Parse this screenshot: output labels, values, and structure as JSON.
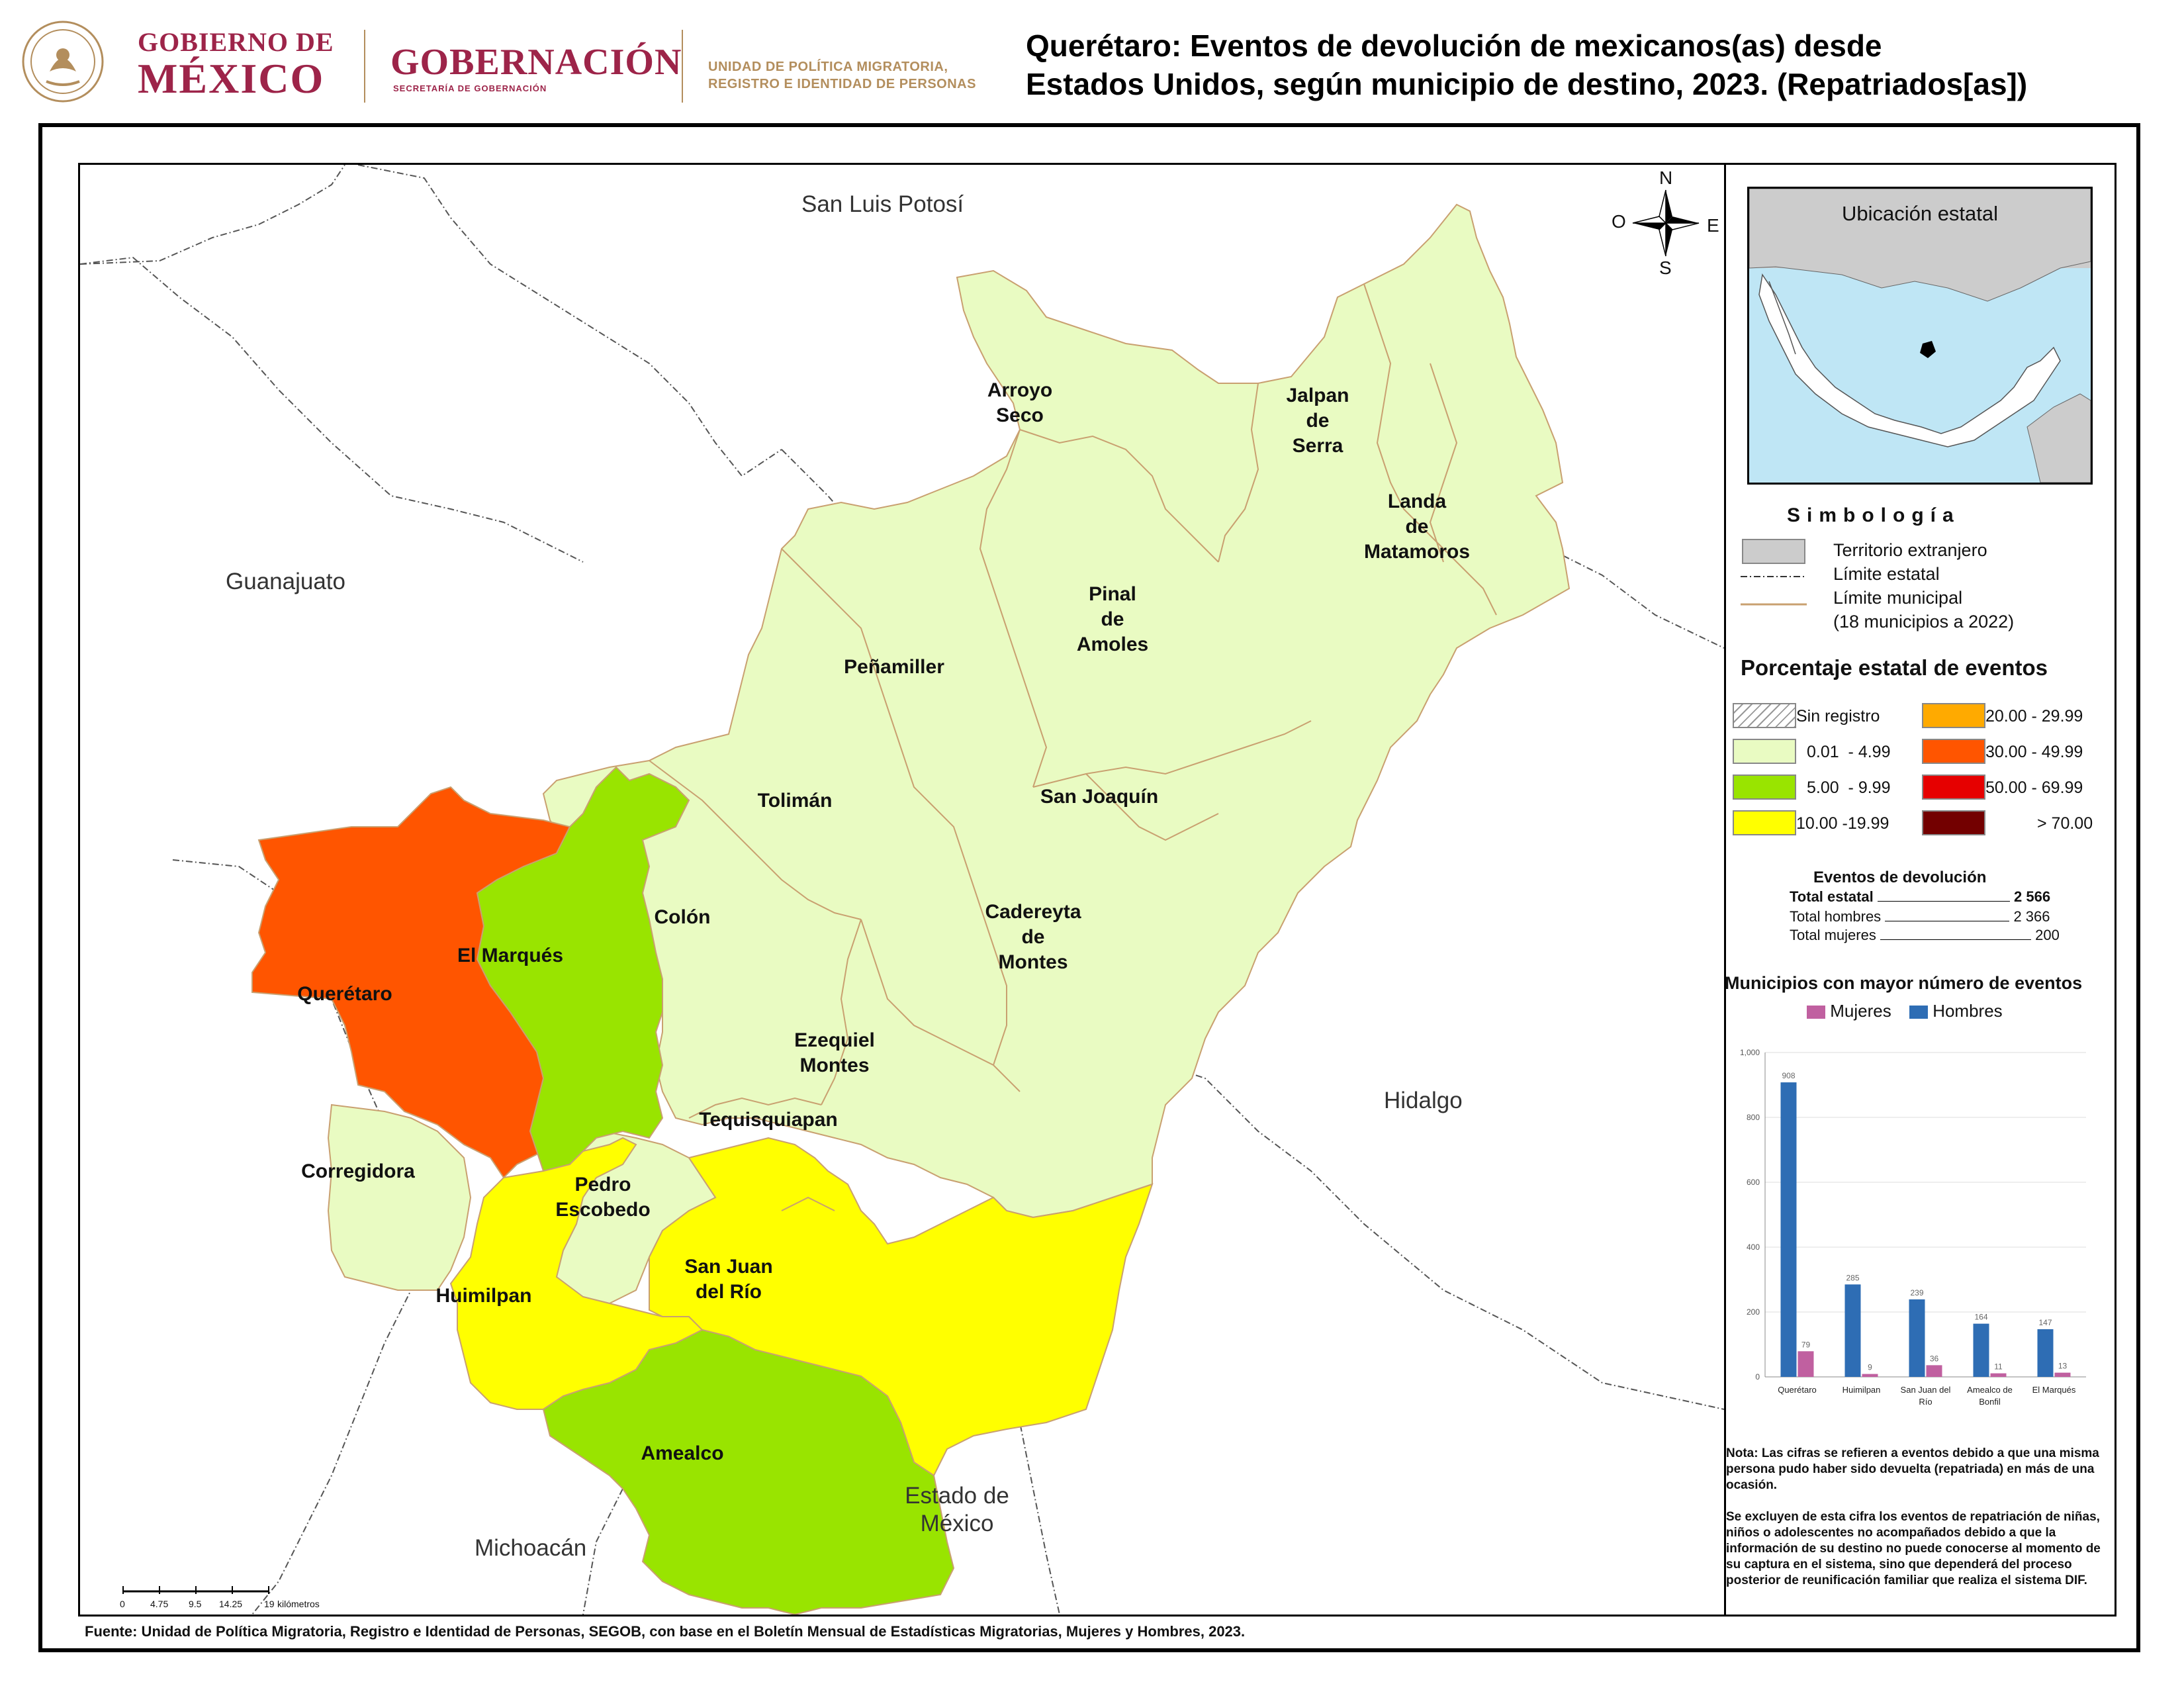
{
  "header": {
    "gob_line1": "GOBIERNO DE",
    "gob_line2": "MÉXICO",
    "gobernacion": "GOBERNACIÓN",
    "gobernacion_sub": "SECRETARÍA DE GOBERNACIÓN",
    "upm_line1": "UNIDAD DE POLÍTICA MIGRATORIA,",
    "upm_line2": "REGISTRO E IDENTIDAD DE PERSONAS",
    "title_line1": "Querétaro: Eventos de devolución de mexicanos(as) desde",
    "title_line2": "Estados Unidos, según municipio de destino, 2023. (Repatriados[as])"
  },
  "map": {
    "neighbors": {
      "north": "San Luis Potosí",
      "west": "Guanajuato",
      "east": "Hidalgo",
      "southwest": "Michoacán",
      "south": "Estado de México"
    },
    "compass": {
      "n": "N",
      "s": "S",
      "e": "E",
      "o": "O"
    },
    "scale": {
      "ticks": [
        "0",
        "4.75",
        "9.5",
        "14.25",
        "19"
      ],
      "unit": "kilómetros"
    },
    "municipios": [
      {
        "name_lines": [
          "Arroyo",
          "Seco"
        ],
        "class": "0.01 - 4.99"
      },
      {
        "name_lines": [
          "Jalpan",
          "de",
          "Serra"
        ],
        "class": "0.01 - 4.99"
      },
      {
        "name_lines": [
          "Landa",
          "de",
          "Matamoros"
        ],
        "class": "0.01 - 4.99"
      },
      {
        "name_lines": [
          "Pinal",
          "de",
          "Amoles"
        ],
        "class": "0.01 - 4.99"
      },
      {
        "name_lines": [
          "Peñamiller"
        ],
        "class": "0.01 - 4.99"
      },
      {
        "name_lines": [
          "Tolimán"
        ],
        "class": "0.01 - 4.99"
      },
      {
        "name_lines": [
          "San Joaquín"
        ],
        "class": "0.01 - 4.99"
      },
      {
        "name_lines": [
          "Colón"
        ],
        "class": "0.01 - 4.99"
      },
      {
        "name_lines": [
          "Cadereyta",
          "de",
          "Montes"
        ],
        "class": "0.01 - 4.99"
      },
      {
        "name_lines": [
          "El Marqués"
        ],
        "class": "5.00 - 9.99"
      },
      {
        "name_lines": [
          "Querétaro"
        ],
        "class": "30.00 - 49.99"
      },
      {
        "name_lines": [
          "Ezequiel",
          "Montes"
        ],
        "class": "0.01 - 4.99"
      },
      {
        "name_lines": [
          "Tequisquiapan"
        ],
        "class": "0.01 - 4.99"
      },
      {
        "name_lines": [
          "Corregidora"
        ],
        "class": "0.01 - 4.99"
      },
      {
        "name_lines": [
          "Pedro",
          "Escobedo"
        ],
        "class": "0.01 - 4.99"
      },
      {
        "name_lines": [
          "Huimilpan"
        ],
        "class": "10.00 -19.99"
      },
      {
        "name_lines": [
          "San Juan",
          "del Río"
        ],
        "class": "10.00 -19.99"
      },
      {
        "name_lines": [
          "Amealco"
        ],
        "class": "5.00 - 9.99"
      }
    ]
  },
  "inset": {
    "title": "Ubicación estatal"
  },
  "legend": {
    "title": "Simbología",
    "items": [
      {
        "label": "Territorio extranjero"
      },
      {
        "label": "Límite estatal"
      },
      {
        "label": "Límite municipal"
      },
      {
        "label": "(18 municipios a 2022)"
      }
    ],
    "pct_title": "Porcentaje estatal de eventos",
    "classes": [
      {
        "label": "Sin registro",
        "color": "#ffffff"
      },
      {
        "label": "0.01  - 4.99",
        "color": "#e9fbc2"
      },
      {
        "label": "5.00  - 9.99",
        "color": "#99e400"
      },
      {
        "label": "10.00 -19.99",
        "color": "#ffff00"
      },
      {
        "label": "20.00 - 29.99",
        "color": "#ffaa00"
      },
      {
        "label": "30.00 - 49.99",
        "color": "#ff5500"
      },
      {
        "label": "50.00 - 69.99",
        "color": "#e60000"
      },
      {
        "label": "> 70.00",
        "color": "#730000"
      }
    ],
    "foreign_color": "#cccccc",
    "municipal_line_color": "#c9a070"
  },
  "eventos": {
    "title": "Eventos de devolución",
    "rows": [
      {
        "label": "Total estatal",
        "value": "2 566"
      },
      {
        "label": "Total hombres",
        "value": "2 366"
      },
      {
        "label": "Total mujeres",
        "value": "200"
      }
    ]
  },
  "chart_data": {
    "type": "bar",
    "title": "Municipios con mayor número de eventos",
    "categories": [
      "Querétaro",
      "Huimilpan",
      "San Juan del Río",
      "Amealco de Bonfil",
      "El Marqués"
    ],
    "series": [
      {
        "name": "Mujeres",
        "color": "#c060a0",
        "values": [
          79,
          9,
          36,
          11,
          13
        ]
      },
      {
        "name": "Hombres",
        "color": "#2e6db4",
        "values": [
          908,
          285,
          239,
          164,
          147
        ]
      }
    ],
    "ylim": [
      0,
      1000
    ],
    "yticks": [
      "0",
      "200",
      "400",
      "600",
      "800",
      "1,000"
    ],
    "grid": true,
    "legend": "top"
  },
  "notes": {
    "note1": "Nota: Las cifras se refieren a eventos debido a que una misma persona pudo haber sido devuelta (repatriada) en más de una ocasión.",
    "note2": "Se excluyen de esta cifra los eventos de repatriación de niñas, niños o adolescentes no acompañados debido a que la información de su destino no puede conocerse al momento de su captura en el sistema, sino que dependerá del proceso posterior de reunificación familiar que realiza el sistema DIF."
  },
  "source": "Fuente: Unidad de Política Migratoria, Registro e Identidad de Personas, SEGOB, con base en el Boletín Mensual de Estadísticas Migratorias, Mujeres y Hombres, 2023."
}
